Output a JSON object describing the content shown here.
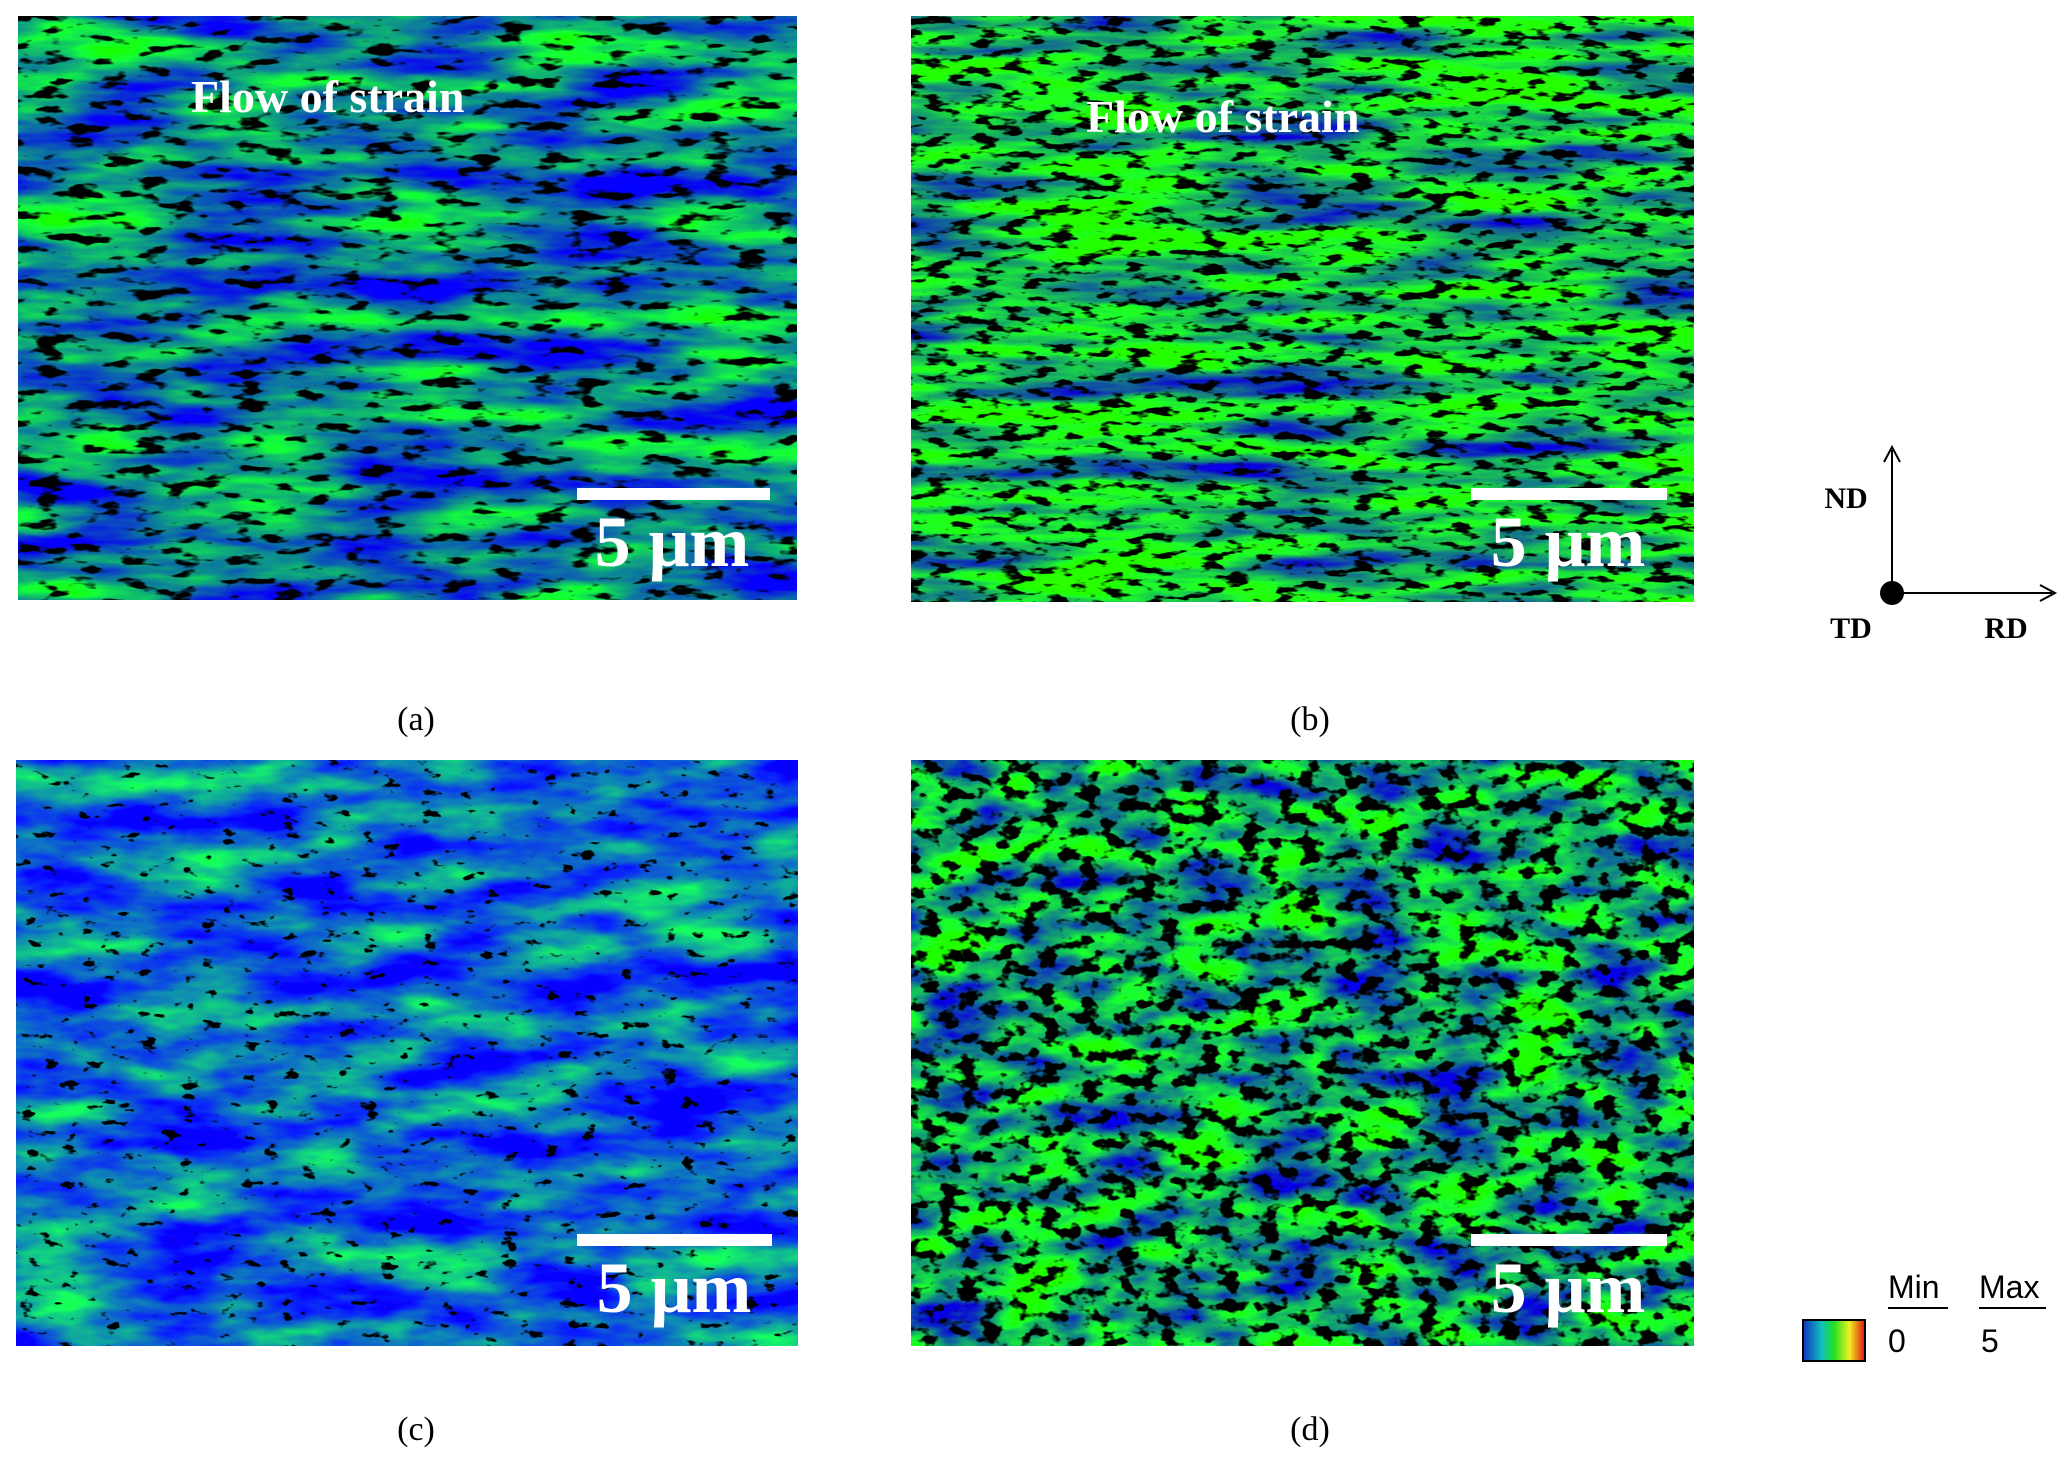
{
  "panels": [
    {
      "label": "(a)",
      "annotation": "Flow of strain",
      "scale_bar": "5 μm"
    },
    {
      "label": "(b)",
      "annotation": "Flow of strain",
      "scale_bar": "5 μm"
    },
    {
      "label": "(c)",
      "scale_bar": "5 μm"
    },
    {
      "label": "(d)",
      "scale_bar": "5 μm"
    }
  ],
  "axes": {
    "vertical": "ND",
    "origin": "TD",
    "horizontal": "RD"
  },
  "colorbar": {
    "min_label": "Min",
    "max_label": "Max",
    "min": 0,
    "max": 5
  }
}
